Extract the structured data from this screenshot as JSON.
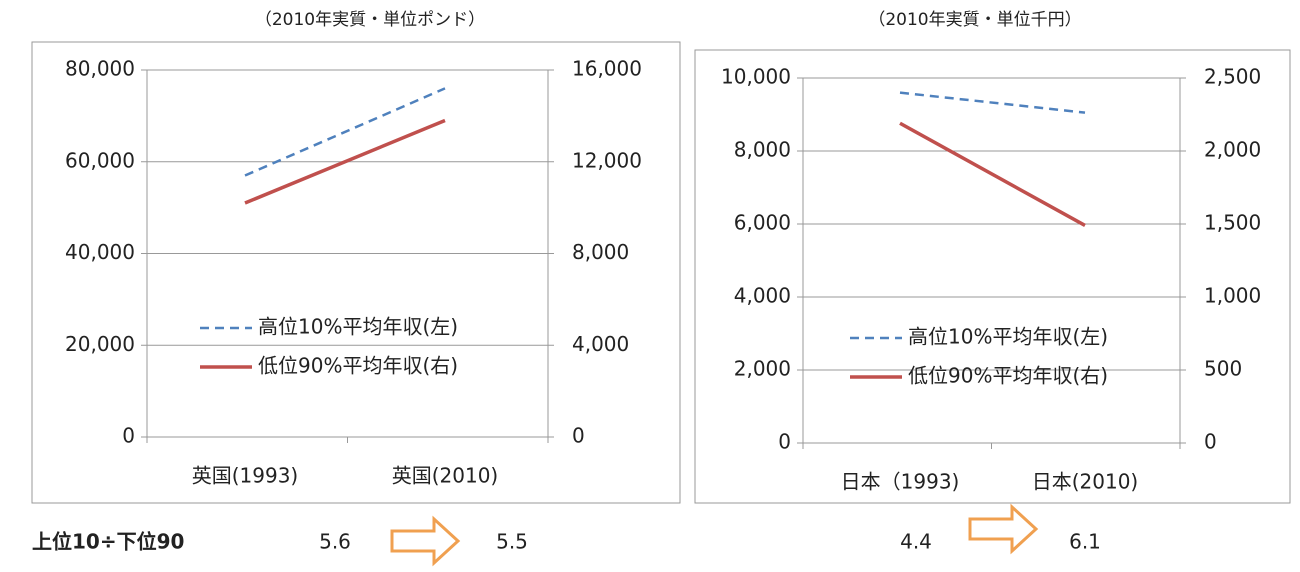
{
  "chart_data": [
    {
      "type": "line",
      "subtitle": "（2010年実質・単位ポンド）",
      "categories": [
        "英国(1993)",
        "英国(2010)"
      ],
      "series": [
        {
          "name": "高位10%平均年収(左)",
          "color": "#4f81bd",
          "line_style": "dashed",
          "values": [
            57000,
            76000
          ]
        },
        {
          "name": "低位90%平均年収(右)",
          "color": "#c0504d",
          "line_style": "solid",
          "axis": "y2",
          "values": [
            10200,
            13800
          ]
        }
      ],
      "ylim": [
        0,
        80000
      ],
      "yticks": [
        0,
        {
          "value": 20000,
          "label": "20,000"
        },
        {
          "value": 40000,
          "label": "40,000"
        },
        {
          "value": 60000,
          "label": "60,000"
        },
        {
          "value": 80000,
          "label": "80,000"
        }
      ],
      "y2lim": [
        0,
        16000
      ],
      "y2ticks": [
        0,
        {
          "value": 4000,
          "label": "4,000"
        },
        {
          "value": 8000,
          "label": "8,000"
        },
        {
          "value": 12000,
          "label": "12,000"
        },
        {
          "value": 16000,
          "label": "16,000"
        }
      ],
      "grid": true
    },
    {
      "type": "line",
      "subtitle": "（2010年実質・単位千円）",
      "categories": [
        "日本（1993)",
        "日本(2010)"
      ],
      "series": [
        {
          "name": "高位10%平均年収(左)",
          "color": "#4f81bd",
          "line_style": "dashed",
          "values": [
            9600,
            9050
          ]
        },
        {
          "name": "低位90%平均年収(右)",
          "color": "#c0504d",
          "line_style": "solid",
          "axis": "y2",
          "values": [
            2190,
            1490
          ]
        }
      ],
      "ylim": [
        0,
        10000
      ],
      "yticks": [
        0,
        {
          "value": 2000,
          "label": "2,000"
        },
        {
          "value": 4000,
          "label": "4,000"
        },
        {
          "value": 6000,
          "label": "6,000"
        },
        {
          "value": 8000,
          "label": "8,000"
        },
        {
          "value": 10000,
          "label": "10,000"
        }
      ],
      "y2lim": [
        0,
        2500
      ],
      "y2ticks": [
        0,
        500,
        {
          "value": 1000,
          "label": "1,000"
        },
        {
          "value": 1500,
          "label": "1,500"
        },
        {
          "value": 2000,
          "label": "2,000"
        },
        {
          "value": 2500,
          "label": "2,500"
        }
      ],
      "grid": true
    }
  ],
  "ratio": {
    "label": "上位10÷下位90",
    "pairs": [
      [
        5.6,
        5.5
      ],
      [
        4.4,
        6.1
      ]
    ]
  }
}
